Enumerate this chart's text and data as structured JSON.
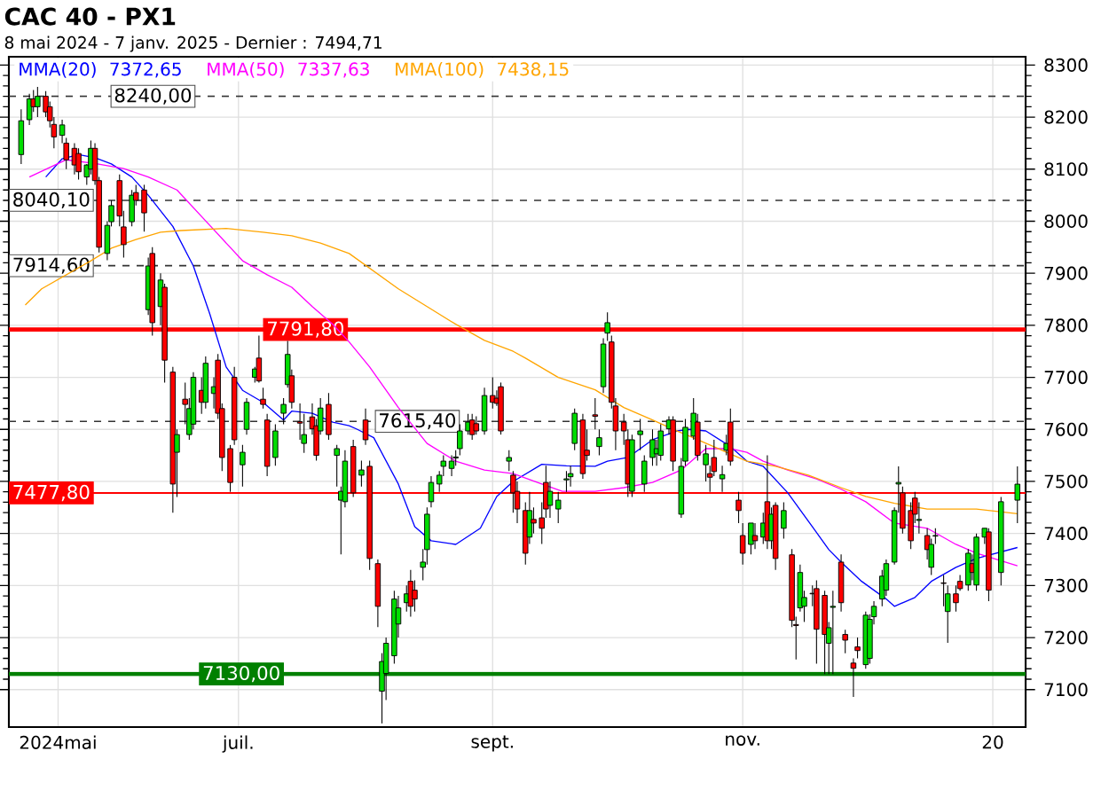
{
  "chart_data": {
    "type": "candlestick",
    "title": "CAC 40 - PX1",
    "subtitle": "8 mai 2024 - 7 janv. 2025 - Dernier : 7494,71",
    "xlim": [
      "2024-05-06",
      "2025-01-09"
    ],
    "ylim": [
      7028,
      8316
    ],
    "xticks": [
      {
        "value": "2024-05-18",
        "label": "2024mai"
      },
      {
        "value": "2024-07-01",
        "label": "juil."
      },
      {
        "value": "2024-09-01",
        "label": "sept."
      },
      {
        "value": "2024-11-01",
        "label": "nov."
      },
      {
        "value": "2025-01-01",
        "label": "20"
      }
    ],
    "yticks": [
      7100,
      7200,
      7300,
      7400,
      7500,
      7600,
      7700,
      7800,
      7900,
      8000,
      8100,
      8200,
      8300
    ],
    "grid": true,
    "legend": "top left",
    "annotations": [
      "7372,65",
      "7337,63",
      "7438,15"
    ],
    "ref_lines": [
      {
        "axis": "y",
        "value": 8240,
        "label": "8240,00",
        "color": "#333333",
        "line_style": "dashed"
      },
      {
        "axis": "y",
        "value": 8040.1,
        "label": "8040,10",
        "color": "#333333",
        "line_style": "dashed"
      },
      {
        "axis": "y",
        "value": 7914.6,
        "label": "7914,60",
        "color": "#333333",
        "line_style": "dashed"
      },
      {
        "axis": "y",
        "value": 7791.8,
        "label": "7791,80",
        "color": "#ff0000",
        "line_style": "solid"
      },
      {
        "axis": "y",
        "value": 7615.4,
        "label": "7615,40",
        "color": "#333333",
        "line_style": "dashed"
      },
      {
        "axis": "y",
        "value": 7477.8,
        "label": "7477,80",
        "color": "#ff0000",
        "line_style": "solid"
      },
      {
        "axis": "y",
        "value": 7130,
        "label": "7130,00",
        "color": "#008000",
        "line_style": "solid"
      }
    ],
    "series": [
      {
        "type": "line",
        "name": "MMA(20)",
        "color": "#0000ff",
        "x": [
          "2024-05-15",
          "2024-05-19",
          "2024-05-23",
          "2024-05-27",
          "2024-05-31",
          "2024-06-05",
          "2024-06-09",
          "2024-06-13",
          "2024-06-15",
          "2024-06-20",
          "2024-06-24",
          "2024-06-28",
          "2024-07-02",
          "2024-07-07",
          "2024-07-12",
          "2024-07-14",
          "2024-07-19",
          "2024-07-24",
          "2024-07-28",
          "2024-07-30",
          "2024-08-03",
          "2024-08-09",
          "2024-08-13",
          "2024-08-17",
          "2024-08-23",
          "2024-08-29",
          "2024-09-02",
          "2024-09-06",
          "2024-09-13",
          "2024-09-19",
          "2024-09-26",
          "2024-09-29",
          "2024-10-04",
          "2024-10-10",
          "2024-10-16",
          "2024-10-19",
          "2024-10-23",
          "2024-10-29",
          "2024-11-02",
          "2024-11-06",
          "2024-11-12",
          "2024-11-18",
          "2024-11-22",
          "2024-11-25",
          "2024-11-30",
          "2024-12-06",
          "2024-12-08",
          "2024-12-13",
          "2024-12-17",
          "2024-12-23",
          "2024-12-28",
          "2025-01-07"
        ],
        "values": [
          8085,
          8120,
          8128,
          8122,
          8110,
          8085,
          8050,
          8010,
          7990,
          7914,
          7822,
          7720,
          7675,
          7652,
          7618,
          7635,
          7631,
          7614,
          7607,
          7600,
          7584,
          7495,
          7413,
          7386,
          7379,
          7410,
          7471,
          7500,
          7533,
          7530,
          7529,
          7539,
          7546,
          7580,
          7597,
          7600,
          7597,
          7567,
          7539,
          7529,
          7478,
          7413,
          7369,
          7345,
          7308,
          7274,
          7260,
          7277,
          7308,
          7335,
          7352,
          7373
        ]
      },
      {
        "type": "line",
        "name": "MMA(50)",
        "color": "#ff00ff",
        "x": [
          "2024-05-11",
          "2024-05-20",
          "2024-05-27",
          "2024-06-03",
          "2024-06-09",
          "2024-06-16",
          "2024-06-24",
          "2024-07-02",
          "2024-07-08",
          "2024-07-14",
          "2024-07-19",
          "2024-07-24",
          "2024-07-28",
          "2024-08-02",
          "2024-08-09",
          "2024-08-16",
          "2024-08-23",
          "2024-08-30",
          "2024-09-06",
          "2024-09-13",
          "2024-09-18",
          "2024-09-26",
          "2024-10-03",
          "2024-10-10",
          "2024-10-17",
          "2024-10-23",
          "2024-10-29",
          "2024-11-02",
          "2024-11-06",
          "2024-11-12",
          "2024-11-19",
          "2024-11-25",
          "2024-12-01",
          "2024-12-08",
          "2024-12-16",
          "2024-12-23",
          "2024-12-28",
          "2025-01-07"
        ],
        "values": [
          8085,
          8118,
          8111,
          8101,
          8085,
          8060,
          7992,
          7924,
          7897,
          7873,
          7836,
          7802,
          7768,
          7720,
          7642,
          7573,
          7539,
          7522,
          7515,
          7495,
          7481,
          7481,
          7488,
          7498,
          7522,
          7563,
          7563,
          7556,
          7539,
          7522,
          7505,
          7485,
          7461,
          7420,
          7410,
          7379,
          7362,
          7338
        ]
      },
      {
        "type": "line",
        "name": "MMA(100)",
        "color": "#ffa500",
        "x": [
          "2024-05-10",
          "2024-05-14",
          "2024-05-20",
          "2024-05-26",
          "2024-05-31",
          "2024-06-06",
          "2024-06-12",
          "2024-06-17",
          "2024-06-28",
          "2024-07-07",
          "2024-07-14",
          "2024-07-21",
          "2024-07-28",
          "2024-08-09",
          "2024-08-16",
          "2024-08-23",
          "2024-08-30",
          "2024-09-06",
          "2024-09-09",
          "2024-09-17",
          "2024-09-26",
          "2024-10-03",
          "2024-10-10",
          "2024-10-16",
          "2024-10-19",
          "2024-10-26",
          "2024-11-02",
          "2024-11-09",
          "2024-11-17",
          "2024-11-25",
          "2024-12-01",
          "2024-12-08",
          "2024-12-16",
          "2024-12-23",
          "2024-12-28",
          "2025-01-07"
        ],
        "values": [
          7839,
          7870,
          7897,
          7924,
          7948,
          7965,
          7979,
          7982,
          7986,
          7979,
          7972,
          7958,
          7938,
          7870,
          7836,
          7802,
          7771,
          7750,
          7737,
          7700,
          7676,
          7642,
          7618,
          7597,
          7587,
          7563,
          7539,
          7529,
          7512,
          7488,
          7471,
          7458,
          7447,
          7447,
          7447,
          7438
        ]
      },
      {
        "x": [
          "2024-05-09",
          "2024-05-11",
          "2024-05-12",
          "2024-05-13",
          "2024-05-15",
          "2024-05-16",
          "2024-05-17",
          "2024-05-19",
          "2024-05-20",
          "2024-05-22",
          "2024-05-23",
          "2024-05-25",
          "2024-05-26",
          "2024-05-27",
          "2024-05-28",
          "2024-05-30",
          "2024-05-31",
          "2024-06-02",
          "2024-06-03",
          "2024-06-05",
          "2024-06-06",
          "2024-06-08",
          "2024-06-09",
          "2024-06-10",
          "2024-06-12",
          "2024-06-13",
          "2024-06-15",
          "2024-06-16",
          "2024-06-18",
          "2024-06-19",
          "2024-06-20",
          "2024-06-22",
          "2024-06-23",
          "2024-06-25",
          "2024-06-26",
          "2024-06-27",
          "2024-06-29",
          "2024-06-30",
          "2024-07-02",
          "2024-07-03",
          "2024-07-05",
          "2024-07-06",
          "2024-07-07",
          "2024-07-08",
          "2024-07-10",
          "2024-07-12",
          "2024-07-13",
          "2024-07-14",
          "2024-07-16",
          "2024-07-17",
          "2024-07-19",
          "2024-07-20",
          "2024-07-21",
          "2024-07-23",
          "2024-07-25",
          "2024-07-26",
          "2024-07-27",
          "2024-07-29",
          "2024-07-31",
          "2024-08-01",
          "2024-08-02",
          "2024-08-04",
          "2024-08-05",
          "2024-08-06",
          "2024-08-08",
          "2024-08-09",
          "2024-08-11",
          "2024-08-12",
          "2024-08-13",
          "2024-08-15",
          "2024-08-16",
          "2024-08-17",
          "2024-08-19",
          "2024-08-20",
          "2024-08-22",
          "2024-08-23",
          "2024-08-24",
          "2024-08-26",
          "2024-08-27",
          "2024-08-28",
          "2024-08-30",
          "2024-09-01",
          "2024-09-02",
          "2024-09-03",
          "2024-09-05",
          "2024-09-06",
          "2024-09-07",
          "2024-09-09",
          "2024-09-10",
          "2024-09-11",
          "2024-09-13",
          "2024-09-14",
          "2024-09-15",
          "2024-09-17",
          "2024-09-19",
          "2024-09-20",
          "2024-09-21",
          "2024-09-23",
          "2024-09-24",
          "2024-09-26",
          "2024-09-27",
          "2024-09-28",
          "2024-09-29",
          "2024-09-30",
          "2024-10-01",
          "2024-10-03",
          "2024-10-04",
          "2024-10-05",
          "2024-10-07",
          "2024-10-08",
          "2024-10-10",
          "2024-10-11",
          "2024-10-12",
          "2024-10-14",
          "2024-10-15",
          "2024-10-17",
          "2024-10-18",
          "2024-10-20",
          "2024-10-21",
          "2024-10-23",
          "2024-10-24",
          "2024-10-25",
          "2024-10-27",
          "2024-10-28",
          "2024-10-29",
          "2024-10-31",
          "2024-11-01",
          "2024-11-03",
          "2024-11-04",
          "2024-11-06",
          "2024-11-07",
          "2024-11-08",
          "2024-11-09",
          "2024-11-11",
          "2024-11-13",
          "2024-11-14",
          "2024-11-15",
          "2024-11-16",
          "2024-11-18",
          "2024-11-19",
          "2024-11-21",
          "2024-11-22",
          "2024-11-23",
          "2024-11-25",
          "2024-11-26",
          "2024-11-28",
          "2024-11-29",
          "2024-12-01",
          "2024-12-02",
          "2024-12-03",
          "2024-12-05",
          "2024-12-06",
          "2024-12-08",
          "2024-12-09",
          "2024-12-10",
          "2024-12-12",
          "2024-12-13",
          "2024-12-14",
          "2024-12-16",
          "2024-12-17",
          "2024-12-18",
          "2024-12-20",
          "2024-12-21",
          "2024-12-23",
          "2024-12-24",
          "2024-12-26",
          "2024-12-27",
          "2024-12-28",
          "2024-12-30",
          "2024-12-31",
          "2025-01-03",
          "2025-01-07"
        ],
        "ohlc": [
          [
            8128,
            8215,
            8110,
            8193
          ],
          [
            8195,
            8245,
            8185,
            8235
          ],
          [
            8235,
            8252,
            8210,
            8220
          ],
          [
            8220,
            8258,
            8200,
            8240
          ],
          [
            8240,
            8250,
            8200,
            8210
          ],
          [
            8220,
            8230,
            8180,
            8193
          ],
          [
            8186,
            8200,
            8140,
            8162
          ],
          [
            8165,
            8195,
            8150,
            8185
          ],
          [
            8150,
            8160,
            8100,
            8118
          ],
          [
            8140,
            8150,
            8090,
            8108
          ],
          [
            8130,
            8140,
            8080,
            8095
          ],
          [
            8085,
            8110,
            8070,
            8108
          ],
          [
            8100,
            8155,
            8090,
            8140
          ],
          [
            8140,
            8150,
            8070,
            8078
          ],
          [
            8078,
            8085,
            7940,
            7950
          ],
          [
            7938,
            8000,
            7925,
            7992
          ],
          [
            7999,
            8040,
            7990,
            8030
          ],
          [
            8078,
            8090,
            7990,
            8010
          ],
          [
            7989,
            8020,
            7930,
            7955
          ],
          [
            7999,
            8060,
            7990,
            8050
          ],
          [
            8055,
            8070,
            8030,
            8040
          ],
          [
            8060,
            8070,
            7980,
            8016
          ],
          [
            7830,
            7930,
            7820,
            7914
          ],
          [
            7938,
            7950,
            7780,
            7805
          ],
          [
            7836,
            7900,
            7800,
            7887
          ],
          [
            7873,
            7880,
            7690,
            7733
          ],
          [
            7710,
            7720,
            7440,
            7495
          ],
          [
            7556,
            7600,
            7470,
            7590
          ],
          [
            7658,
            7690,
            7610,
            7648
          ],
          [
            7590,
            7660,
            7580,
            7640
          ],
          [
            7610,
            7710,
            7600,
            7700
          ],
          [
            7675,
            7700,
            7630,
            7652
          ],
          [
            7652,
            7740,
            7640,
            7727
          ],
          [
            7669,
            7700,
            7640,
            7682
          ],
          [
            7733,
            7745,
            7620,
            7631
          ],
          [
            7640,
            7650,
            7520,
            7546
          ],
          [
            7563,
            7570,
            7480,
            7498
          ],
          [
            7700,
            7720,
            7570,
            7580
          ],
          [
            7532,
            7570,
            7490,
            7556
          ],
          [
            7600,
            7660,
            7590,
            7652
          ],
          [
            7700,
            7720,
            7690,
            7716
          ],
          [
            7737,
            7780,
            7690,
            7693
          ],
          [
            7658,
            7680,
            7640,
            7648
          ],
          [
            7618,
            7630,
            7510,
            7529
          ],
          [
            7546,
            7610,
            7530,
            7597
          ],
          [
            7631,
            7660,
            7610,
            7648
          ],
          [
            7686,
            7770,
            7680,
            7744
          ],
          [
            7703,
            7715,
            7640,
            7652
          ],
          [
            7615,
            7650,
            7580,
            7612
          ],
          [
            7573,
            7630,
            7555,
            7590
          ],
          [
            7624,
            7650,
            7590,
            7601
          ],
          [
            7607,
            7620,
            7540,
            7550
          ],
          [
            7597,
            7660,
            7590,
            7641
          ],
          [
            7648,
            7670,
            7580,
            7590
          ],
          [
            7550,
            7570,
            7490,
            7563
          ],
          [
            7464,
            7490,
            7360,
            7481
          ],
          [
            7461,
            7560,
            7450,
            7539
          ],
          [
            7567,
            7580,
            7470,
            7478
          ],
          [
            7512,
            7540,
            7490,
            7522
          ],
          [
            7618,
            7640,
            7570,
            7580
          ],
          [
            7529,
            7540,
            7330,
            7352
          ],
          [
            7342,
            7350,
            7220,
            7260
          ],
          [
            7097,
            7170,
            7035,
            7154
          ],
          [
            7131,
            7200,
            7080,
            7189
          ],
          [
            7165,
            7290,
            7150,
            7274
          ],
          [
            7226,
            7280,
            7200,
            7257
          ],
          [
            7267,
            7300,
            7250,
            7284
          ],
          [
            7308,
            7330,
            7240,
            7260
          ],
          [
            7291,
            7310,
            7250,
            7274
          ],
          [
            7335,
            7370,
            7310,
            7345
          ],
          [
            7369,
            7450,
            7340,
            7437
          ],
          [
            7461,
            7510,
            7450,
            7498
          ],
          [
            7495,
            7520,
            7480,
            7512
          ],
          [
            7529,
            7550,
            7510,
            7539
          ],
          [
            7525,
            7550,
            7510,
            7539
          ],
          [
            7545,
            7560,
            7530,
            7547
          ],
          [
            7563,
            7610,
            7550,
            7597
          ],
          [
            7597,
            7630,
            7590,
            7614
          ],
          [
            7618,
            7630,
            7580,
            7590
          ],
          [
            7611,
            7625,
            7590,
            7597
          ],
          [
            7597,
            7680,
            7590,
            7665
          ],
          [
            7665,
            7700,
            7640,
            7652
          ],
          [
            7660,
            7675,
            7645,
            7650
          ],
          [
            7682,
            7690,
            7590,
            7597
          ],
          [
            7539,
            7560,
            7520,
            7546
          ],
          [
            7512,
            7520,
            7440,
            7478
          ],
          [
            7481,
            7500,
            7420,
            7447
          ],
          [
            7444,
            7460,
            7340,
            7362
          ],
          [
            7393,
            7480,
            7380,
            7444
          ],
          [
            7427,
            7450,
            7400,
            7420
          ],
          [
            7430,
            7460,
            7380,
            7410
          ],
          [
            7498,
            7530,
            7430,
            7447
          ],
          [
            7454,
            7500,
            7430,
            7481
          ],
          [
            7447,
            7480,
            7420,
            7464
          ],
          [
            7503,
            7520,
            7480,
            7505
          ],
          [
            7509,
            7530,
            7490,
            7515
          ],
          [
            7573,
            7640,
            7560,
            7631
          ],
          [
            7618,
            7630,
            7505,
            7515
          ],
          [
            7560,
            7600,
            7540,
            7550
          ],
          [
            7628,
            7660,
            7600,
            7625
          ],
          [
            7567,
            7600,
            7550,
            7584
          ],
          [
            7682,
            7775,
            7670,
            7764
          ],
          [
            7785,
            7825,
            7770,
            7805
          ],
          [
            7768,
            7780,
            7640,
            7652
          ],
          [
            7645,
            7660,
            7560,
            7597
          ],
          [
            7614,
            7630,
            7570,
            7597
          ],
          [
            7580,
            7600,
            7470,
            7495
          ],
          [
            7481,
            7590,
            7470,
            7580
          ],
          [
            7590,
            7620,
            7560,
            7597
          ],
          [
            7495,
            7550,
            7480,
            7539
          ],
          [
            7546,
            7600,
            7530,
            7580
          ],
          [
            7553,
            7580,
            7530,
            7563
          ],
          [
            7550,
            7610,
            7540,
            7597
          ],
          [
            7601,
            7625,
            7590,
            7618
          ],
          [
            7618,
            7625,
            7520,
            7539
          ],
          [
            7437,
            7545,
            7430,
            7529
          ],
          [
            7539,
            7620,
            7530,
            7604
          ],
          [
            7587,
            7660,
            7580,
            7631
          ],
          [
            7614,
            7630,
            7540,
            7550
          ],
          [
            7532,
            7570,
            7500,
            7553
          ],
          [
            7515,
            7530,
            7480,
            7508
          ],
          [
            7546,
            7580,
            7510,
            7519
          ],
          [
            7505,
            7530,
            7480,
            7513
          ],
          [
            7560,
            7590,
            7550,
            7573
          ],
          [
            7614,
            7640,
            7530,
            7539
          ],
          [
            7464,
            7480,
            7420,
            7444
          ],
          [
            7396,
            7420,
            7340,
            7362
          ],
          [
            7379,
            7420,
            7360,
            7420
          ],
          [
            7396,
            7420,
            7370,
            7386
          ],
          [
            7393,
            7440,
            7380,
            7420
          ],
          [
            7461,
            7550,
            7370,
            7386
          ],
          [
            7386,
            7450,
            7370,
            7437
          ],
          [
            7454,
            7460,
            7330,
            7352
          ],
          [
            7410,
            7460,
            7390,
            7444
          ],
          [
            7359,
            7370,
            7220,
            7233
          ],
          [
            7225,
            7240,
            7158,
            7223
          ],
          [
            7257,
            7340,
            7250,
            7325
          ],
          [
            7260,
            7290,
            7230,
            7277
          ],
          [
            7285,
            7300,
            7260,
            7284
          ],
          [
            7294,
            7310,
            7150,
            7216
          ],
          [
            7281,
            7290,
            7130,
            7206
          ],
          [
            7189,
            7230,
            7130,
            7219
          ],
          [
            7258,
            7290,
            7130,
            7260
          ],
          [
            7345,
            7360,
            7250,
            7267
          ],
          [
            7206,
            7215,
            7170,
            7195
          ],
          [
            7151,
            7160,
            7086,
            7141
          ],
          [
            7182,
            7200,
            7160,
            7175
          ],
          [
            7148,
            7250,
            7140,
            7243
          ],
          [
            7160,
            7245,
            7150,
            7235
          ],
          [
            7240,
            7270,
            7225,
            7260
          ],
          [
            7274,
            7330,
            7260,
            7318
          ],
          [
            7291,
            7350,
            7280,
            7342
          ],
          [
            7345,
            7450,
            7340,
            7444
          ],
          [
            7495,
            7529,
            7440,
            7498
          ],
          [
            7478,
            7490,
            7400,
            7410
          ],
          [
            7444,
            7460,
            7370,
            7386
          ],
          [
            7468,
            7480,
            7420,
            7437
          ],
          [
            7425,
            7460,
            7400,
            7427
          ],
          [
            7396,
            7410,
            7350,
            7369
          ],
          [
            7335,
            7390,
            7320,
            7379
          ],
          [
            7395,
            7410,
            7380,
            7396
          ],
          [
            7305,
            7320,
            7260,
            7304
          ],
          [
            7250,
            7300,
            7190,
            7284
          ],
          [
            7284,
            7300,
            7250,
            7267
          ],
          [
            7308,
            7320,
            7290,
            7294
          ],
          [
            7301,
            7370,
            7290,
            7362
          ],
          [
            7342,
            7360,
            7310,
            7325
          ],
          [
            7301,
            7400,
            7290,
            7393
          ],
          [
            7393,
            7410,
            7380,
            7410
          ],
          [
            7403,
            7410,
            7270,
            7291
          ],
          [
            7325,
            7470,
            7300,
            7461
          ],
          [
            7464,
            7529,
            7420,
            7494.71
          ]
        ]
      }
    ]
  }
}
